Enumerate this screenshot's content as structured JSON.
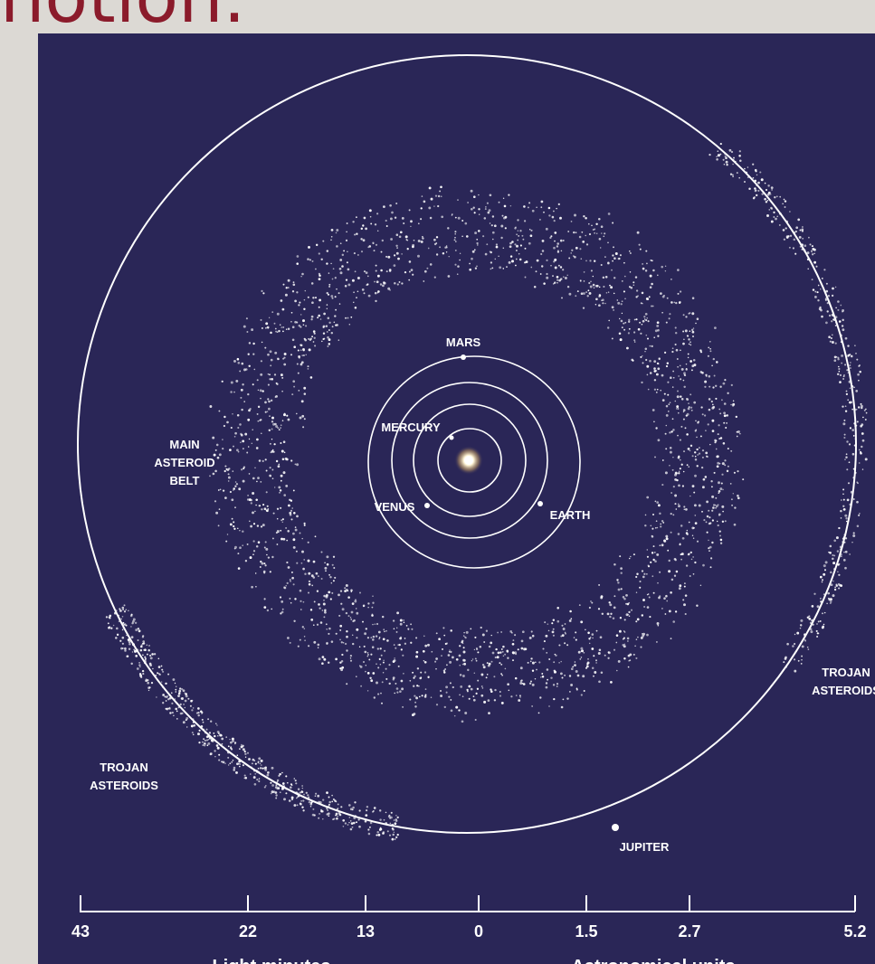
{
  "slide": {
    "title": "notion."
  },
  "labels": {
    "mars": "MARS",
    "mercury": "MERCURY",
    "venus": "VENUS",
    "earth": "EARTH",
    "jupiter": "JUPITER",
    "main_belt": [
      "MAIN",
      "ASTEROID",
      "BELT"
    ],
    "trojan_left": [
      "TROJAN",
      "ASTEROIDS"
    ],
    "trojan_right": [
      "TROJAN",
      "ASTEROIDS"
    ]
  },
  "scale": {
    "ticks": [
      "43",
      "22",
      "13",
      "0",
      "1.5",
      "2.7",
      "5.2"
    ],
    "left_unit": "Light minutes",
    "right_unit": "Astronomical units"
  },
  "colors": {
    "background": "#2a2657",
    "line": "#ffffff",
    "title": "#8b1b2b"
  }
}
